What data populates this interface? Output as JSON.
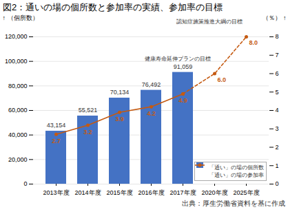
{
  "chart_data": {
    "type": "bar",
    "title": "図2：通いの場の個所数と参加率の実績、参加率の目標",
    "categories": [
      "2013年度",
      "2014年度",
      "2015年度",
      "2016年度",
      "2017年度",
      "2020年度",
      "2025年度"
    ],
    "ylabel": "（個所数）",
    "y2label": "（％）",
    "ylim": [
      0,
      120000
    ],
    "yticks": [
      0,
      {
        "value": 20000,
        "label": "20,000"
      },
      {
        "value": 40000,
        "label": "40,000"
      },
      {
        "value": 60000,
        "label": "60,000"
      },
      {
        "value": 80000,
        "label": "80,000"
      },
      {
        "value": 100000,
        "label": "100,000"
      },
      {
        "value": 120000,
        "label": "120,000"
      }
    ],
    "y2lim": [
      0,
      8
    ],
    "y2ticks": [
      0,
      1,
      2,
      3,
      4,
      5,
      6,
      7,
      8
    ],
    "grid": true,
    "legend": "lower right",
    "data_labels": true,
    "series": [
      {
        "name": "「通い」の場の個所数",
        "type": "bar",
        "color": "#4472C4",
        "values": [
          43154,
          55521,
          70134,
          76492,
          91059,
          null,
          null
        ],
        "value_labels": [
          "43,154",
          "55,521",
          "70,134",
          "76,492",
          "91,059",
          null,
          null
        ]
      },
      {
        "name": "「通い」の場の参加率",
        "type": "line",
        "axis": "y2",
        "color": "#C55A11",
        "marker": "circle",
        "line_style": "solid",
        "values": [
          2.7,
          3.2,
          3.9,
          4.2,
          4.9,
          null,
          null
        ]
      },
      {
        "type": "line",
        "axis": "y2",
        "color": "#C55A11",
        "marker": "circle",
        "line_style": "dashed",
        "values": [
          null,
          null,
          null,
          null,
          4.9,
          6.0,
          8.0
        ],
        "value_labels": [
          null,
          null,
          null,
          null,
          null,
          "6.0",
          "8.0"
        ]
      }
    ],
    "annotations": [
      "健康寿命延伸プランの目標",
      "認知症施策推進大綱の目標"
    ],
    "caption": "出典：厚生労働省資料を基に作成"
  }
}
